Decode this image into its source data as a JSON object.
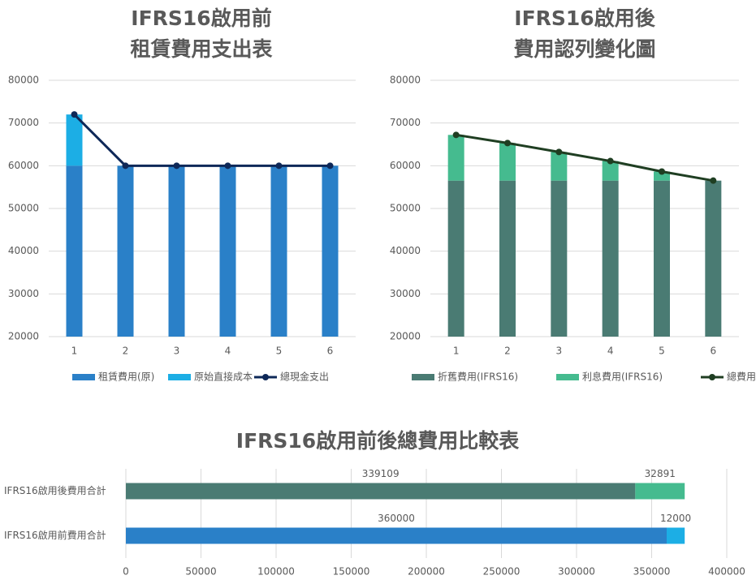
{
  "chart_data": [
    {
      "type": "combo",
      "title": [
        "IFRS16啟用前",
        "租賃費用支出表"
      ],
      "categories": [
        "1",
        "2",
        "3",
        "4",
        "5",
        "6"
      ],
      "series": [
        {
          "name": "租賃費用(原)",
          "color": "#2a80c8",
          "kind": "bar",
          "values": [
            60000,
            60000,
            60000,
            60000,
            60000,
            60000
          ]
        },
        {
          "name": "原始直接成本",
          "color": "#1caee5",
          "kind": "bar",
          "values": [
            12000,
            0,
            0,
            0,
            0,
            0
          ]
        },
        {
          "name": "總現金支出",
          "color": "#0e2858",
          "kind": "line",
          "values": [
            72000,
            60000,
            60000,
            60000,
            60000,
            60000
          ]
        }
      ],
      "ylim": [
        20000,
        80000
      ],
      "yticks": [
        20000,
        30000,
        40000,
        50000,
        60000,
        70000,
        80000
      ],
      "grid": true,
      "legend": "bottom"
    },
    {
      "type": "combo",
      "title": [
        "IFRS16啟用後",
        "費用認列變化圖"
      ],
      "categories": [
        "1",
        "2",
        "3",
        "4",
        "5",
        "6"
      ],
      "series": [
        {
          "name": "折舊費用(IFRS16)",
          "color": "#4a7b73",
          "kind": "bar",
          "values": [
            56518,
            56518,
            56518,
            56518,
            56518,
            56518
          ]
        },
        {
          "name": "利息費用(IFRS16)",
          "color": "#45bb8f",
          "kind": "bar",
          "values": [
            10700,
            8790,
            6700,
            4580,
            2121,
            0
          ]
        },
        {
          "name": "總費用",
          "color": "#1f3e22",
          "kind": "line",
          "values": [
            67218,
            65308,
            63218,
            61098,
            58639,
            56518
          ]
        }
      ],
      "ylim": [
        20000,
        80000
      ],
      "yticks": [
        20000,
        30000,
        40000,
        50000,
        60000,
        70000,
        80000
      ],
      "grid": true,
      "legend": "bottom"
    },
    {
      "type": "barh",
      "title": "IFRS16啟用前後總費用比較表",
      "categories": [
        "IFRS16啟用後費用合計",
        "IFRS16啟用前費用合計"
      ],
      "series": [
        {
          "colors": [
            "#4a7b73",
            "#2a80c8"
          ],
          "values": [
            339109,
            360000
          ]
        },
        {
          "colors": [
            "#45bb8f",
            "#1caee5"
          ],
          "values": [
            32891,
            12000
          ]
        }
      ],
      "xlim": [
        0,
        400000
      ],
      "xticks": [
        0,
        50000,
        100000,
        150000,
        200000,
        250000,
        300000,
        350000,
        400000
      ],
      "grid": true
    }
  ]
}
